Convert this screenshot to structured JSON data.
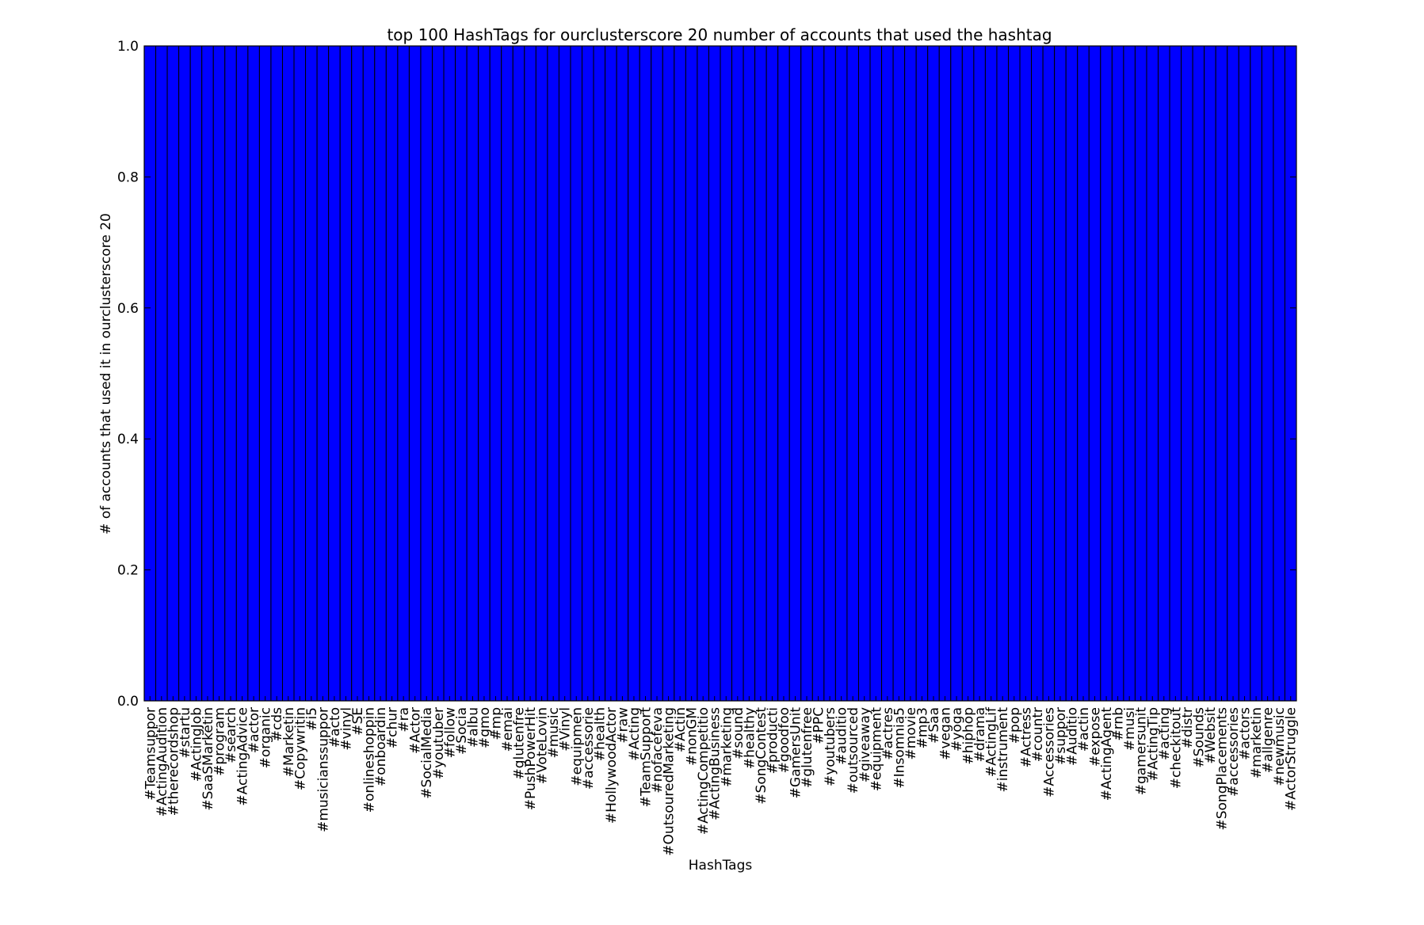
{
  "chart_data": {
    "type": "bar",
    "title": "top 100 HashTags for ourclusterscore 20 number of accounts that used the hashtag",
    "xlabel": "HashTags",
    "ylabel": "# of accounts that used it in ourclusterscore 20",
    "ylim": [
      0.0,
      1.0
    ],
    "yticks": [
      "0.0",
      "0.2",
      "0.4",
      "0.6",
      "0.8",
      "1.0"
    ],
    "bar_color": "#0000ff",
    "edge_color": "#000000",
    "grid": false,
    "categories": [
      "#Teamsuppor",
      "#ActingAudition",
      "#therecordshop",
      "#startu",
      "#ActingJob",
      "#SaaSMarketin",
      "#program",
      "#search",
      "#ActingAdvice",
      "#actor",
      "#organic",
      "#cds",
      "#Marketin",
      "#Copywritin",
      "#i5",
      "#musicianssuppor",
      "#acto",
      "#vinyl",
      "#SE",
      "#onlineshoppin",
      "#onboardin",
      "#chur",
      "#ra",
      "#Actor",
      "#SocialMedia",
      "#youtuber",
      "#follow",
      "#Socia",
      "#albu",
      "#gmo",
      "#mp",
      "#emai",
      "#glutenfre",
      "#PushPowerHit",
      "#VoteLovin",
      "#music",
      "#Vinyl",
      "#equipmen",
      "#accessorie",
      "#health",
      "#HollywoodActor",
      "#raw",
      "#Acting",
      "#TeamSupport",
      "#nofacefeva",
      "#OutsouredMarketing",
      "#Actin",
      "#nonGM",
      "#ActingCompetitio",
      "#ActingBusiness",
      "#marketing",
      "#sound",
      "#healthy",
      "#SongContest",
      "#producti",
      "#goodfoo",
      "#GamersUnit",
      "#glutenfree",
      "#PPC",
      "#youtubers",
      "#auditio",
      "#outsourced",
      "#giveaway",
      "#equipment",
      "#actres",
      "#Insomnia5",
      "#movie",
      "#mp3",
      "#Saa",
      "#vegan",
      "#yoga",
      "#hiphop",
      "#drama",
      "#ActingLif",
      "#instrument",
      "#pop",
      "#Actress",
      "#countr",
      "#Accessories",
      "#suppor",
      "#Auditio",
      "#actin",
      "#expose",
      "#ActingAgent",
      "#rnb",
      "#musi",
      "#gamersunit",
      "#ActingTip",
      "#acting",
      "#checkitout",
      "#distr",
      "#Sounds",
      "#Websit",
      "#SongPlacements",
      "#accessories",
      "#actors",
      "#marketin",
      "#allgenre",
      "#newmusic",
      "#ActorStruggle"
    ],
    "values": [
      1,
      1,
      1,
      1,
      1,
      1,
      1,
      1,
      1,
      1,
      1,
      1,
      1,
      1,
      1,
      1,
      1,
      1,
      1,
      1,
      1,
      1,
      1,
      1,
      1,
      1,
      1,
      1,
      1,
      1,
      1,
      1,
      1,
      1,
      1,
      1,
      1,
      1,
      1,
      1,
      1,
      1,
      1,
      1,
      1,
      1,
      1,
      1,
      1,
      1,
      1,
      1,
      1,
      1,
      1,
      1,
      1,
      1,
      1,
      1,
      1,
      1,
      1,
      1,
      1,
      1,
      1,
      1,
      1,
      1,
      1,
      1,
      1,
      1,
      1,
      1,
      1,
      1,
      1,
      1,
      1,
      1,
      1,
      1,
      1,
      1,
      1,
      1,
      1,
      1,
      1,
      1,
      1,
      1,
      1,
      1,
      1,
      1,
      1,
      1
    ]
  }
}
